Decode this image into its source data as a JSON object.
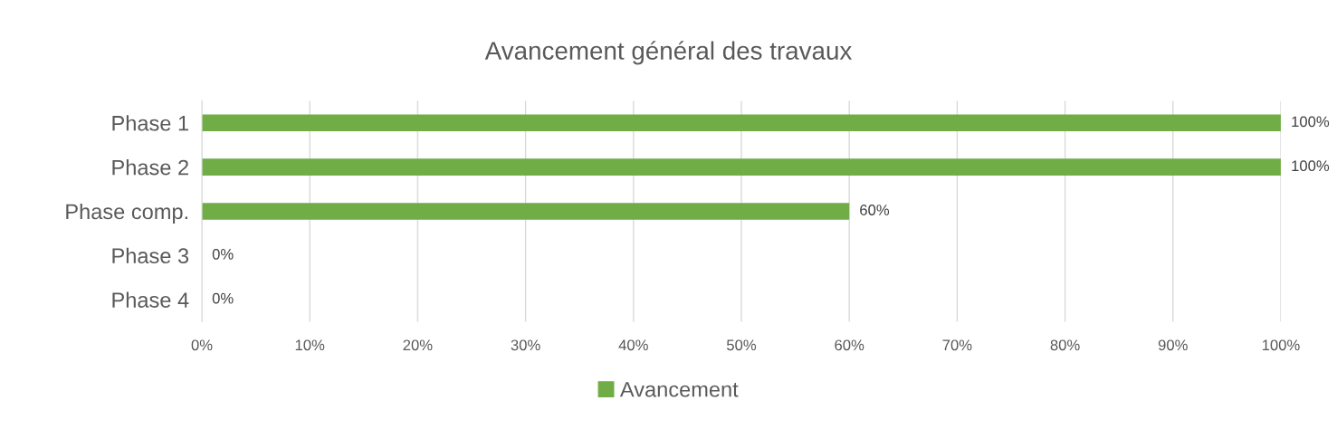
{
  "chart_data": {
    "type": "bar",
    "orientation": "horizontal",
    "title": "Avancement général des travaux",
    "categories": [
      "Phase 1",
      "Phase 2",
      "Phase comp.",
      "Phase 3",
      "Phase 4"
    ],
    "series": [
      {
        "name": "Avancement",
        "color": "#70ad47",
        "values": [
          100,
          100,
          60,
          0,
          0
        ],
        "value_labels": [
          "100%",
          "100%",
          "60%",
          "0%",
          "0%"
        ]
      }
    ],
    "xlim": [
      0,
      100
    ],
    "xticks": [
      {
        "value": 0,
        "label": "0%"
      },
      {
        "value": 10,
        "label": "10%"
      },
      {
        "value": 20,
        "label": "20%"
      },
      {
        "value": 30,
        "label": "30%"
      },
      {
        "value": 40,
        "label": "40%"
      },
      {
        "value": 50,
        "label": "50%"
      },
      {
        "value": 60,
        "label": "60%"
      },
      {
        "value": 70,
        "label": "70%"
      },
      {
        "value": 80,
        "label": "80%"
      },
      {
        "value": 90,
        "label": "90%"
      },
      {
        "value": 100,
        "label": "100%"
      }
    ],
    "grid": "x",
    "legend": "bottom"
  }
}
